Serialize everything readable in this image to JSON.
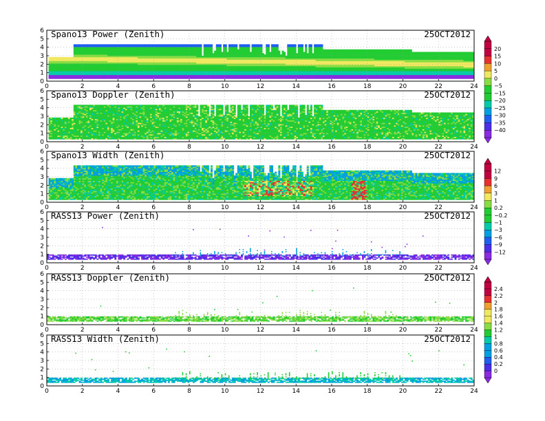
{
  "chart_data": [
    {
      "type": "heatmap",
      "title": "Spano13 Power (Zenith)",
      "date": "25OCT2012",
      "x": [
        0,
        2,
        4,
        6,
        8,
        10,
        12,
        14,
        16,
        18,
        20,
        22,
        24
      ],
      "xlim": [
        0,
        24
      ],
      "y": [
        0,
        1,
        2,
        3,
        4,
        5,
        6
      ],
      "ylim": [
        0,
        6
      ],
      "grid": "dotted",
      "colorbar": {
        "ticks": [
          "20",
          "15",
          "10",
          "5",
          "0",
          "−5",
          "−15",
          "−20",
          "−25",
          "−30",
          "−35",
          "−40"
        ]
      },
      "series": [
        {
          "values": [
            [
              0,
              4.2,
              "#1e5ef0"
            ],
            [
              1,
              3.5,
              "#22cc33"
            ],
            [
              2,
              2.5,
              "#f0e860"
            ],
            [
              3,
              1.8,
              "#88dd44"
            ],
            [
              4,
              0.8,
              "#00ccaa"
            ],
            [
              5,
              0.4,
              "#8a2be2"
            ]
          ]
        }
      ],
      "legend": "right"
    },
    {
      "type": "heatmap",
      "title": "Spano13 Doppler (Zenith)",
      "date": "25OCT2012",
      "x": [
        0,
        2,
        4,
        6,
        8,
        10,
        12,
        14,
        16,
        18,
        20,
        22,
        24
      ],
      "xlim": [
        0,
        24
      ],
      "y": [
        0,
        1,
        2,
        3,
        4,
        5,
        6
      ],
      "ylim": [
        0,
        6
      ],
      "grid": "dotted"
    },
    {
      "type": "heatmap",
      "title": "Spano13 Width (Zenith)",
      "date": "25OCT2012",
      "x": [
        0,
        2,
        4,
        6,
        8,
        10,
        12,
        14,
        16,
        18,
        20,
        22,
        24
      ],
      "xlim": [
        0,
        24
      ],
      "y": [
        0,
        1,
        2,
        3,
        4,
        5,
        6
      ],
      "ylim": [
        0,
        6
      ],
      "grid": "dotted",
      "colorbar": {
        "ticks": [
          "12",
          "9",
          "6",
          "3",
          "1",
          "0.2",
          "−0.2",
          "−1",
          "−3",
          "−6",
          "−9",
          "−12"
        ]
      },
      "legend": "right"
    },
    {
      "type": "heatmap",
      "title": "RASS13 Power (Zenith)",
      "date": "25OCT2012",
      "x": [
        0,
        2,
        4,
        6,
        8,
        10,
        12,
        14,
        16,
        18,
        20,
        22,
        24
      ],
      "xlim": [
        0,
        24
      ],
      "y": [
        0,
        1,
        2,
        3,
        4,
        5,
        6
      ],
      "ylim": [
        0,
        6
      ],
      "grid": "dotted"
    },
    {
      "type": "heatmap",
      "title": "RASS13 Doppler (Zenith)",
      "date": "25OCT2012",
      "x": [
        0,
        2,
        4,
        6,
        8,
        10,
        12,
        14,
        16,
        18,
        20,
        22,
        24
      ],
      "xlim": [
        0,
        24
      ],
      "y": [
        0,
        1,
        2,
        3,
        4,
        5,
        6
      ],
      "ylim": [
        0,
        6
      ],
      "grid": "dotted",
      "colorbar": {
        "ticks": [
          "2.4",
          "2.2",
          "2",
          "1.8",
          "1.6",
          "1.4",
          "1.2",
          "1",
          "0.8",
          "0.6",
          "0.4",
          "0.2",
          "0"
        ]
      },
      "legend": "right"
    },
    {
      "type": "heatmap",
      "title": "RASS13 Width (Zenith)",
      "date": "25OCT2012",
      "x": [
        0,
        2,
        4,
        6,
        8,
        10,
        12,
        14,
        16,
        18,
        20,
        22,
        24
      ],
      "xlim": [
        0,
        24
      ],
      "y": [
        0,
        1,
        2,
        3,
        4,
        5,
        6
      ],
      "ylim": [
        0,
        6
      ],
      "grid": "dotted"
    }
  ],
  "colors": {
    "palette": [
      "#8a2be2",
      "#4b2ee8",
      "#1e5ef0",
      "#00a0e0",
      "#00ccaa",
      "#22cc33",
      "#88dd44",
      "#f0e860",
      "#f0a030",
      "#e83030",
      "#c00040"
    ]
  }
}
